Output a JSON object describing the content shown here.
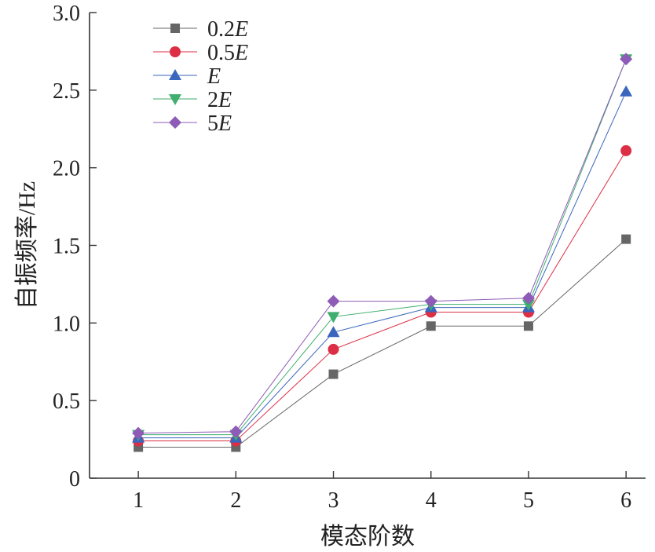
{
  "chart_data": {
    "type": "line",
    "title": "",
    "xlabel": "模态阶数",
    "ylabel": "自振频率/Hz",
    "x": [
      1,
      2,
      3,
      4,
      5,
      6
    ],
    "xticks": [
      "1",
      "2",
      "3",
      "4",
      "5",
      "6"
    ],
    "xlim": [
      0.5,
      6.2
    ],
    "ylim": [
      0,
      3.0
    ],
    "yticks": [
      "0",
      "0.5",
      "1.0",
      "1.5",
      "2.0",
      "2.5",
      "3.0"
    ],
    "grid": false,
    "legend_position": "top-left",
    "series": [
      {
        "name": "0.2E",
        "name_num": "0.2",
        "name_sym": "E",
        "marker": "square",
        "color": "#666666",
        "values": [
          0.2,
          0.2,
          0.67,
          0.98,
          0.98,
          1.54
        ]
      },
      {
        "name": "0.5E",
        "name_num": "0.5",
        "name_sym": "E",
        "marker": "circle",
        "color": "#dc2f45",
        "values": [
          0.24,
          0.24,
          0.83,
          1.07,
          1.07,
          2.11
        ]
      },
      {
        "name": "E",
        "name_num": "",
        "name_sym": "E",
        "marker": "triangle-up",
        "color": "#3a66bd",
        "values": [
          0.26,
          0.26,
          0.94,
          1.1,
          1.1,
          2.49
        ]
      },
      {
        "name": "2E",
        "name_num": "2",
        "name_sym": "E",
        "marker": "triangle-down",
        "color": "#3fae6e",
        "values": [
          0.28,
          0.28,
          1.04,
          1.12,
          1.12,
          2.7
        ]
      },
      {
        "name": "5E",
        "name_num": "5",
        "name_sym": "E",
        "marker": "diamond",
        "color": "#8e5bb7",
        "values": [
          0.29,
          0.3,
          1.14,
          1.14,
          1.16,
          2.7
        ]
      }
    ]
  }
}
